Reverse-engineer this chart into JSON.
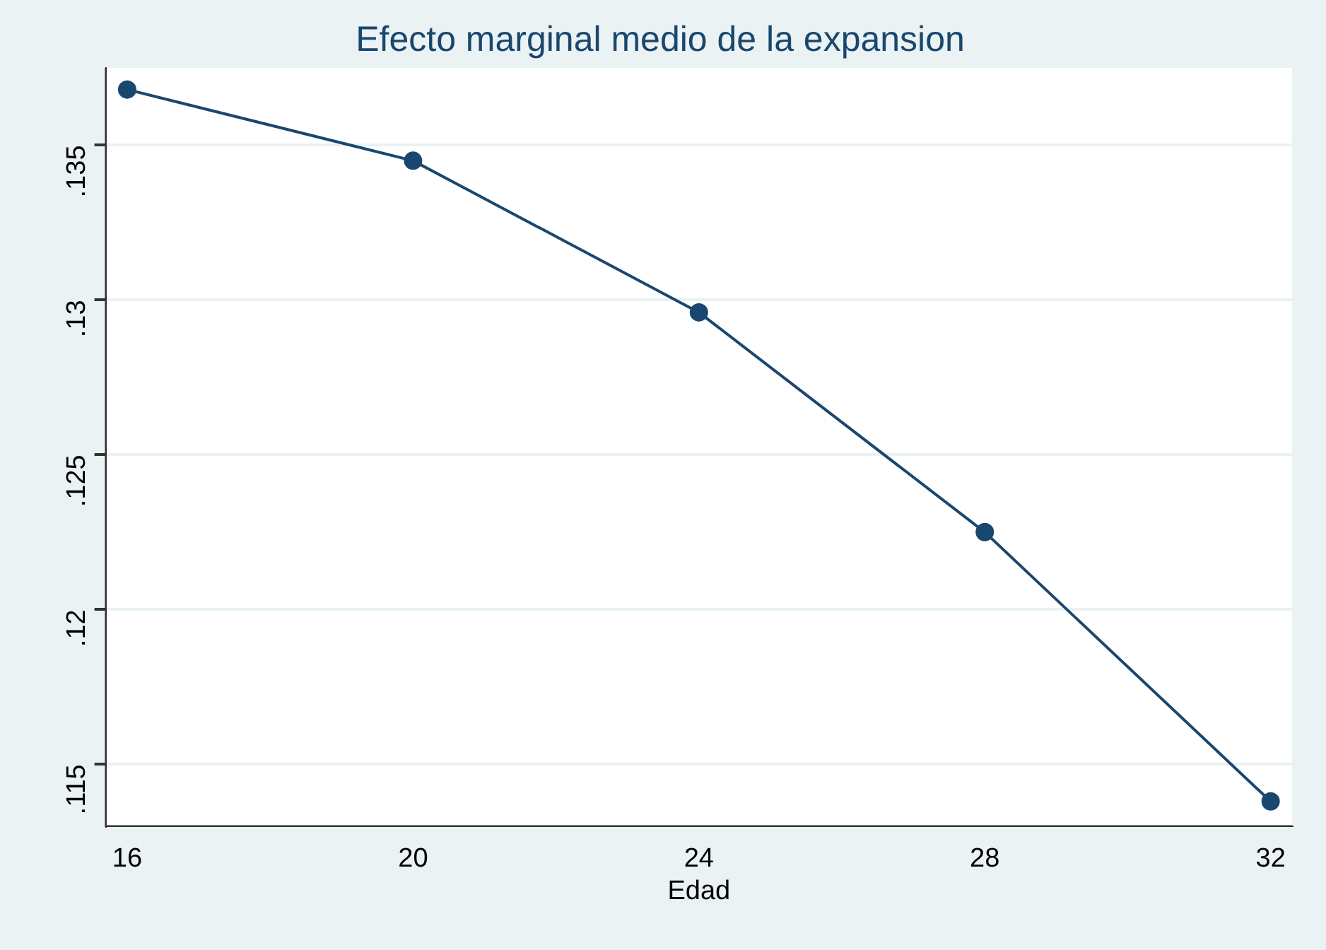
{
  "chart_data": {
    "type": "line",
    "title": "Efecto marginal medio de la expansion",
    "xlabel": "Edad",
    "x": [
      16,
      20,
      24,
      28,
      32
    ],
    "series": [
      {
        "color": "#1a476f",
        "values": [
          0.1368,
          0.1345,
          0.1296,
          0.1225,
          0.1138
        ]
      }
    ],
    "xlim": [
      15.7,
      32.3
    ],
    "xticks": [
      16,
      20,
      24,
      28,
      32
    ],
    "ylim": [
      0.113,
      0.1375
    ],
    "yticks": [
      {
        "value": 0.115,
        "label": ".115"
      },
      {
        "value": 0.12,
        "label": ".12"
      },
      {
        "value": 0.125,
        "label": ".125"
      },
      {
        "value": 0.13,
        "label": ".13"
      },
      {
        "value": 0.135,
        "label": ".135"
      }
    ],
    "grid": "y",
    "marker": "circle",
    "line_style": "solid",
    "legend": false
  }
}
